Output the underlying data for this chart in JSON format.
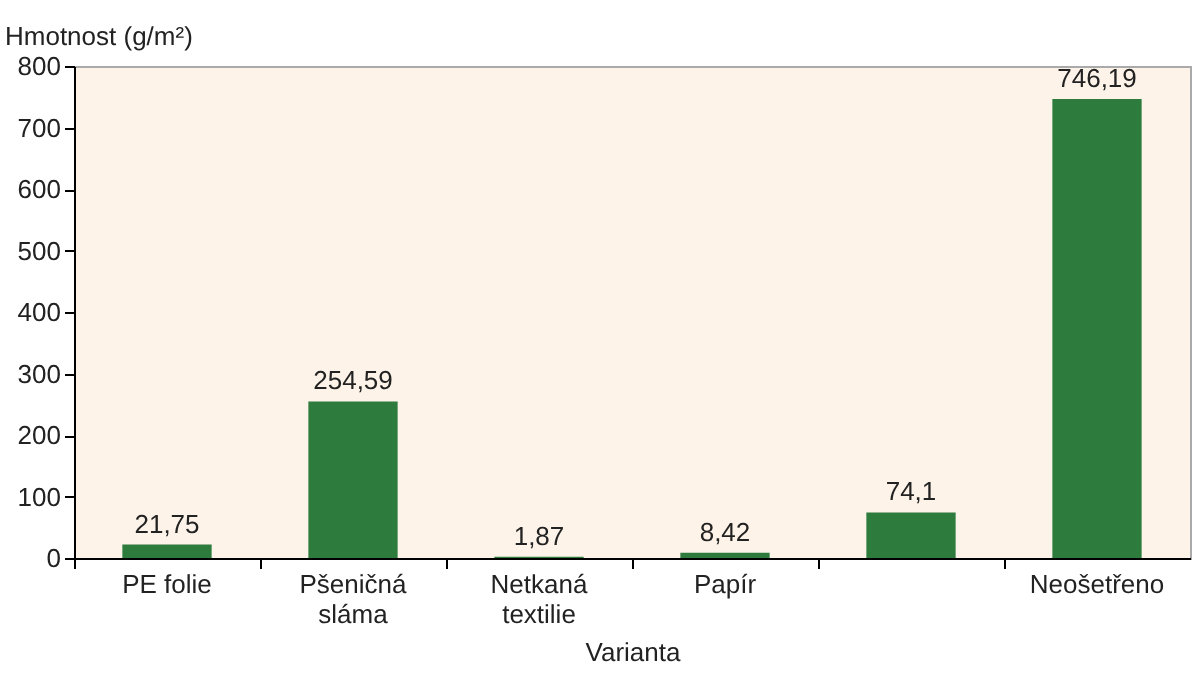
{
  "chart_data": {
    "type": "bar",
    "categories": [
      "PE folie",
      "Pšeničná\nsláma",
      "Netkaná\ntextilie",
      "Papír",
      null,
      "Neošetřeno"
    ],
    "values": [
      21.75,
      254.59,
      1.87,
      8.42,
      74.1,
      746.19
    ],
    "value_labels": [
      "21,75",
      "254,59",
      "1,87",
      "8,42",
      "74,1",
      "746,19"
    ],
    "color": "#2e7b3e",
    "xlabel": "Varianta",
    "ylabel": "Hmotnost (g/m²)",
    "ylim": [
      0,
      800
    ],
    "yticks": [
      0,
      100,
      200,
      300,
      400,
      500,
      600,
      700,
      800
    ],
    "grid": false
  }
}
